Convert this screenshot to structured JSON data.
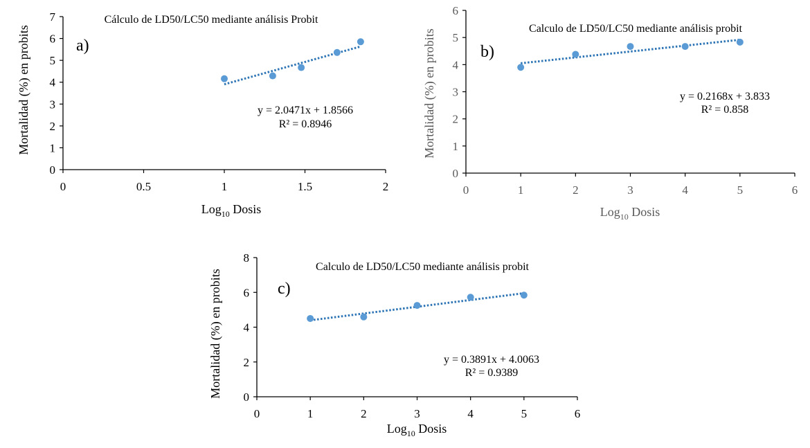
{
  "chart_data": [
    {
      "type": "scatter",
      "panel_label": "a)",
      "title": "Cálculo de LD50/LC50 mediante análisis Probit",
      "xlabel": "Log",
      "xlabel_sub": "10",
      "xlabel_suffix": " Dosis",
      "ylabel": "Mortalidad (%) en probits",
      "xlim": [
        0,
        2
      ],
      "ylim": [
        0,
        7
      ],
      "x_ticks": [
        "0",
        "0.5",
        "1",
        "1.5",
        "2"
      ],
      "y_ticks": [
        "0",
        "1",
        "2",
        "3",
        "4",
        "5",
        "6",
        "7"
      ],
      "axis_color": "#000000",
      "series": [
        {
          "x": [
            1.0,
            1.3,
            1.477,
            1.699,
            1.845
          ],
          "y": [
            4.16,
            4.29,
            4.67,
            5.36,
            5.85
          ]
        }
      ],
      "trendline": {
        "slope": 2.0471,
        "intercept": 1.8566,
        "equation": "y = 2.0471x + 1.8566",
        "r2": "R² = 0.8946"
      }
    },
    {
      "type": "scatter",
      "panel_label": "b)",
      "title": "Calculo de LD50/LC50 mediante análisis probit",
      "xlabel": "Log",
      "xlabel_sub": "10",
      "xlabel_suffix": " Dosis",
      "ylabel": "Mortalidad (%) en probits",
      "xlim": [
        0,
        6
      ],
      "ylim": [
        0,
        6
      ],
      "x_ticks": [
        "0",
        "1",
        "2",
        "3",
        "4",
        "5",
        "6"
      ],
      "y_ticks": [
        "0",
        "1",
        "2",
        "3",
        "4",
        "5",
        "6"
      ],
      "axis_color": "#595959",
      "series": [
        {
          "x": [
            1,
            2,
            3,
            4,
            5
          ],
          "y": [
            3.9,
            4.38,
            4.67,
            4.67,
            4.83
          ]
        }
      ],
      "trendline": {
        "slope": 0.2168,
        "intercept": 3.833,
        "equation": "y = 0.2168x + 3.833",
        "r2": "R² = 0.858"
      }
    },
    {
      "type": "scatter",
      "panel_label": "c)",
      "title": "Calculo de LD50/LC50 mediante análisis probit",
      "xlabel": "Log",
      "xlabel_sub": "10",
      "xlabel_suffix": " Dosis",
      "ylabel": "Mortalidad (%) en probits",
      "xlim": [
        0,
        6
      ],
      "ylim": [
        0,
        8
      ],
      "x_ticks": [
        "0",
        "1",
        "2",
        "3",
        "4",
        "5",
        "6"
      ],
      "y_ticks": [
        "0",
        "2",
        "4",
        "6",
        "8"
      ],
      "axis_color": "#000000",
      "series": [
        {
          "x": [
            1,
            2,
            3,
            4,
            5
          ],
          "y": [
            4.5,
            4.59,
            5.25,
            5.72,
            5.84
          ]
        }
      ],
      "trendline": {
        "slope": 0.3891,
        "intercept": 4.0063,
        "equation": "y = 0.3891x + 4.0063",
        "r2": "R² = 0.9389"
      }
    }
  ]
}
